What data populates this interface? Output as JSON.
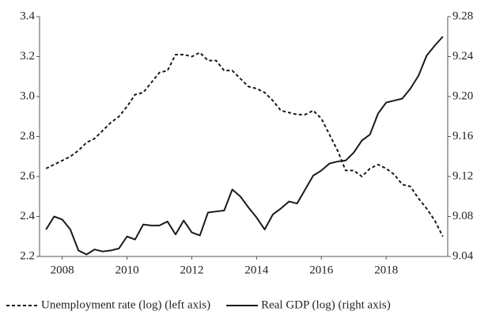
{
  "chart_data": {
    "type": "line",
    "x": [
      2007.5,
      2007.75,
      2008,
      2008.25,
      2008.5,
      2008.75,
      2009,
      2009.25,
      2009.5,
      2009.75,
      2010,
      2010.25,
      2010.5,
      2010.75,
      2011,
      2011.25,
      2011.5,
      2011.75,
      2012,
      2012.25,
      2012.5,
      2012.75,
      2013,
      2013.25,
      2013.5,
      2013.75,
      2014,
      2014.25,
      2014.5,
      2014.75,
      2015,
      2015.25,
      2015.5,
      2015.75,
      2016,
      2016.25,
      2016.5,
      2016.75,
      2017,
      2017.25,
      2017.5,
      2017.75,
      2018,
      2018.25,
      2018.5,
      2018.75,
      2019,
      2019.25,
      2019.5,
      2019.75
    ],
    "xlim": [
      2007.3,
      2019.9
    ],
    "xticks": [
      2008,
      2010,
      2012,
      2014,
      2016,
      2018
    ],
    "ylim": [
      2.2,
      3.4
    ],
    "yticks": [
      2.2,
      2.4,
      2.6,
      2.8,
      {
        "value": 3.0,
        "label": "3.0"
      },
      3.2,
      3.4
    ],
    "y2lim": [
      9.04,
      9.28
    ],
    "y2ticks": [
      9.04,
      9.08,
      9.12,
      9.16,
      {
        "value": 9.2,
        "label": "9.20"
      },
      9.24,
      9.28
    ],
    "grid": false,
    "legend": "bottom",
    "series": [
      {
        "name": "Unemployment rate (log) (left axis)",
        "color": "#1a1a1a",
        "line_style": "dashed",
        "values": [
          2.64,
          2.66,
          2.68,
          2.7,
          2.73,
          2.77,
          2.79,
          2.83,
          2.87,
          2.9,
          2.95,
          3.01,
          3.02,
          3.07,
          3.12,
          3.13,
          3.21,
          3.21,
          3.2,
          3.22,
          3.18,
          3.18,
          3.13,
          3.13,
          3.09,
          3.05,
          3.04,
          3.02,
          2.98,
          2.93,
          2.92,
          2.91,
          2.91,
          2.93,
          2.89,
          2.81,
          2.73,
          2.63,
          2.63,
          2.6,
          2.64,
          2.66,
          2.64,
          2.61,
          2.56,
          2.55,
          2.49,
          2.44,
          2.38,
          2.3
        ]
      },
      {
        "name": "Real GDP (log) (right axis)",
        "color": "#1a1a1a",
        "line_style": "solid",
        "axis": "y2",
        "values": [
          9.067,
          9.08,
          9.077,
          9.067,
          9.046,
          9.042,
          9.047,
          9.045,
          9.046,
          9.048,
          9.06,
          9.057,
          9.072,
          9.071,
          9.071,
          9.075,
          9.062,
          9.076,
          9.064,
          9.061,
          9.084,
          9.085,
          9.086,
          9.107,
          9.1,
          9.089,
          9.079,
          9.067,
          9.082,
          9.088,
          9.095,
          9.093,
          9.107,
          9.121,
          9.126,
          9.133,
          9.135,
          9.136,
          9.144,
          9.156,
          9.162,
          9.183,
          9.194,
          9.196,
          9.198,
          9.208,
          9.221,
          9.241,
          9.251,
          9.26
        ]
      }
    ]
  }
}
